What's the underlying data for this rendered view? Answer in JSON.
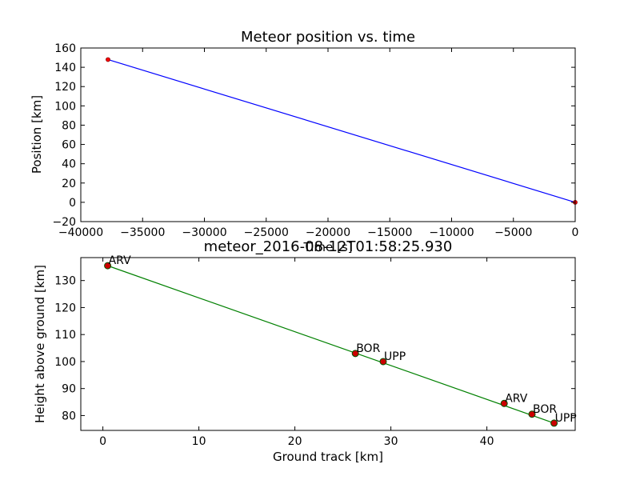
{
  "colors": {
    "background": "#ffffff",
    "top_line": "#0000ff",
    "top_marker": "#ff0000",
    "bottom_line": "#008000",
    "station_marker_fill": "#cc0000",
    "station_marker_edge": "#005500"
  },
  "chart_data": [
    {
      "type": "line",
      "title": "Meteor position vs. time",
      "xlabel": "Time [s]",
      "ylabel": "Position [km]",
      "xlim": [
        -40000,
        0
      ],
      "ylim": [
        -20,
        160
      ],
      "xticks": [
        -40000,
        -35000,
        -30000,
        -25000,
        -20000,
        -15000,
        -10000,
        -5000,
        0
      ],
      "xtick_labels": [
        "−40000",
        "−35000",
        "−30000",
        "−25000",
        "−20000",
        "−15000",
        "−10000",
        "−5000",
        "0"
      ],
      "yticks": [
        -20,
        0,
        20,
        40,
        60,
        80,
        100,
        120,
        140,
        160
      ],
      "ytick_labels": [
        "−20",
        "0",
        "20",
        "40",
        "60",
        "80",
        "100",
        "120",
        "140",
        "160"
      ],
      "grid": false,
      "series": [
        {
          "x": [
            -37800,
            0
          ],
          "y": [
            148,
            0
          ]
        }
      ],
      "markers": {
        "x": [
          -37800,
          0
        ],
        "y": [
          148,
          0
        ]
      }
    },
    {
      "type": "line",
      "title": "meteor_2016-08-12T01:58:25.930",
      "xlabel": "Ground track [km]",
      "ylabel": "Height above ground [km]",
      "xlim": [
        -2.3,
        49.2
      ],
      "ylim": [
        74.5,
        138.5
      ],
      "xticks": [
        0,
        10,
        20,
        30,
        40
      ],
      "xtick_labels": [
        "0",
        "10",
        "20",
        "30",
        "40"
      ],
      "yticks": [
        80,
        90,
        100,
        110,
        120,
        130
      ],
      "ytick_labels": [
        "80",
        "90",
        "100",
        "110",
        "120",
        "130"
      ],
      "grid": false,
      "series": [
        {
          "x": [
            0.5,
            47.0
          ],
          "y": [
            135.5,
            77.2
          ]
        }
      ],
      "points": [
        {
          "label": "ARV",
          "x": 0.5,
          "y": 135.5
        },
        {
          "label": "BOR",
          "x": 26.3,
          "y": 103.0
        },
        {
          "label": "UPP",
          "x": 29.2,
          "y": 100.0
        },
        {
          "label": "ARV",
          "x": 41.8,
          "y": 84.5
        },
        {
          "label": "BOR",
          "x": 44.7,
          "y": 80.5
        },
        {
          "label": "UPP",
          "x": 47.0,
          "y": 77.2
        }
      ]
    }
  ]
}
